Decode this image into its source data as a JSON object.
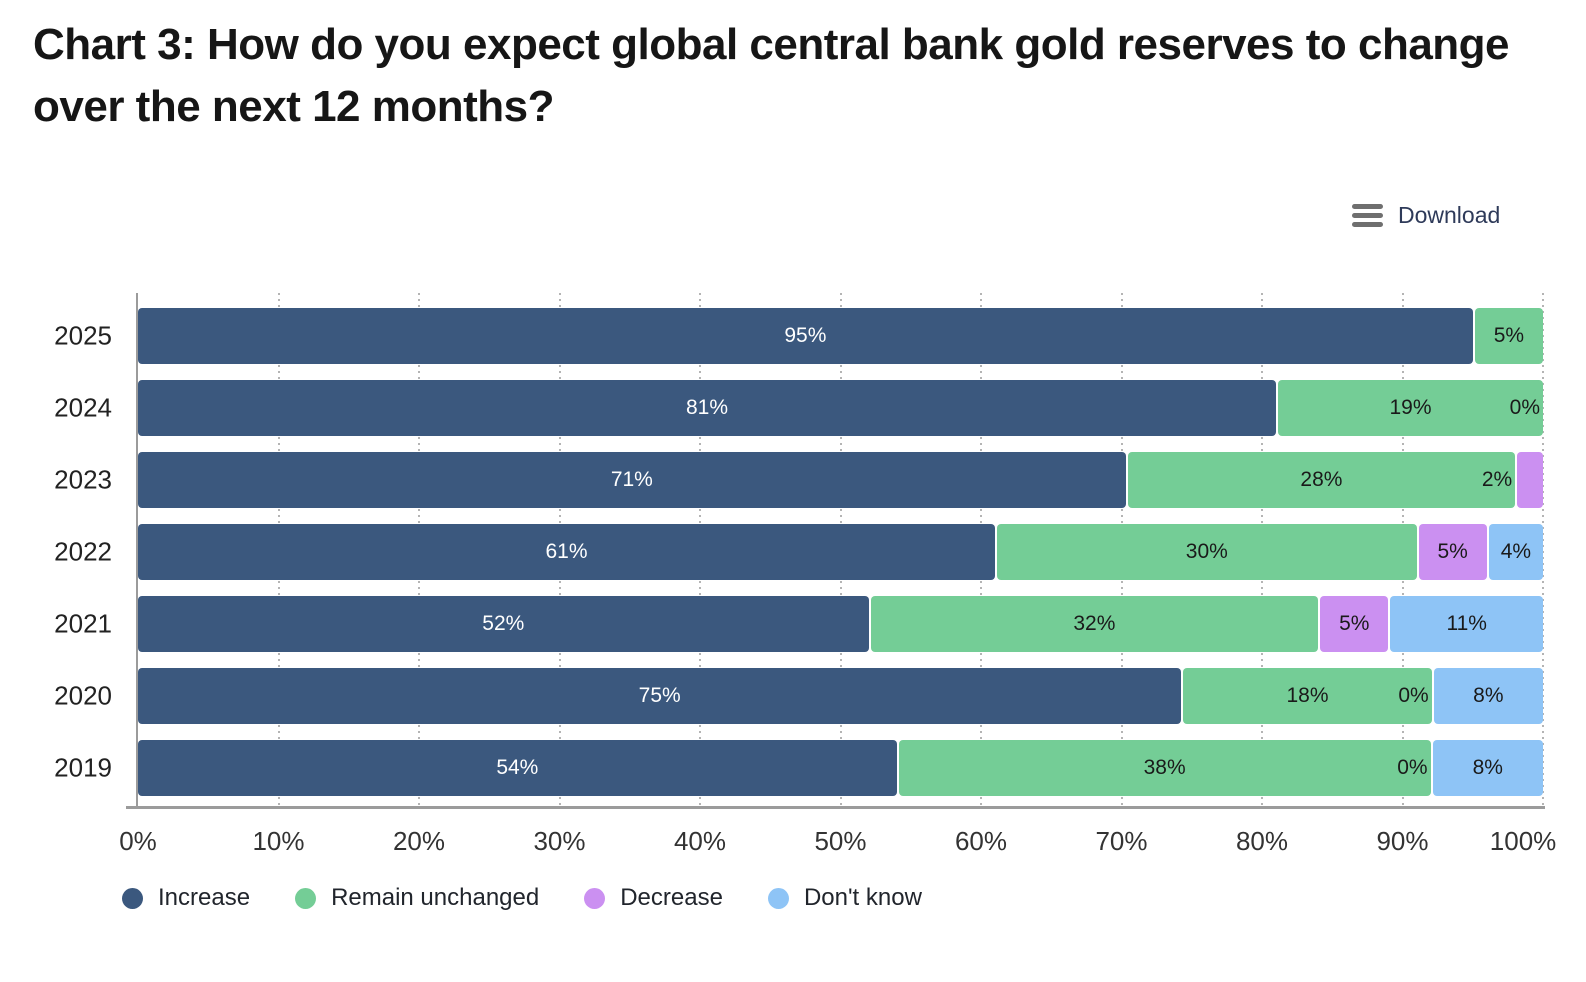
{
  "chart_data": {
    "type": "bar",
    "orientation": "horizontal",
    "stacked": true,
    "title": "Chart 3: How do you expect global central bank gold reserves to change over the next 12 months?",
    "categories": [
      "2025",
      "2024",
      "2023",
      "2022",
      "2021",
      "2020",
      "2019"
    ],
    "series": [
      {
        "name": "Increase",
        "color": "#3b587e",
        "values": [
          95,
          81,
          71,
          61,
          52,
          75,
          54
        ]
      },
      {
        "name": "Remain unchanged",
        "color": "#74cd96",
        "values": [
          5,
          19,
          28,
          30,
          32,
          18,
          38
        ]
      },
      {
        "name": "Decrease",
        "color": "#cb90f1",
        "values": [
          null,
          0,
          2,
          5,
          5,
          0,
          0
        ]
      },
      {
        "name": "Don't know",
        "color": "#8ec4f6",
        "values": [
          null,
          null,
          null,
          4,
          11,
          8,
          8
        ]
      }
    ],
    "x_ticks": [
      "0%",
      "10%",
      "20%",
      "30%",
      "40%",
      "50%",
      "60%",
      "70%",
      "80%",
      "90%",
      "100%"
    ],
    "xlim": [
      0,
      100
    ],
    "xlabel": "",
    "ylabel": "",
    "grid": "dotted-vertical",
    "legend_position": "bottom"
  },
  "ui": {
    "download_label": "Download"
  },
  "colors": {
    "title_text": "#161616",
    "axis_line": "#9b9b9b",
    "gridline": "#b4b4b4",
    "label_on_dark": "#ffffff",
    "label_on_light": "#1a1a1a",
    "download_text": "#2e3a59",
    "download_icon": "#6f6f6f"
  }
}
